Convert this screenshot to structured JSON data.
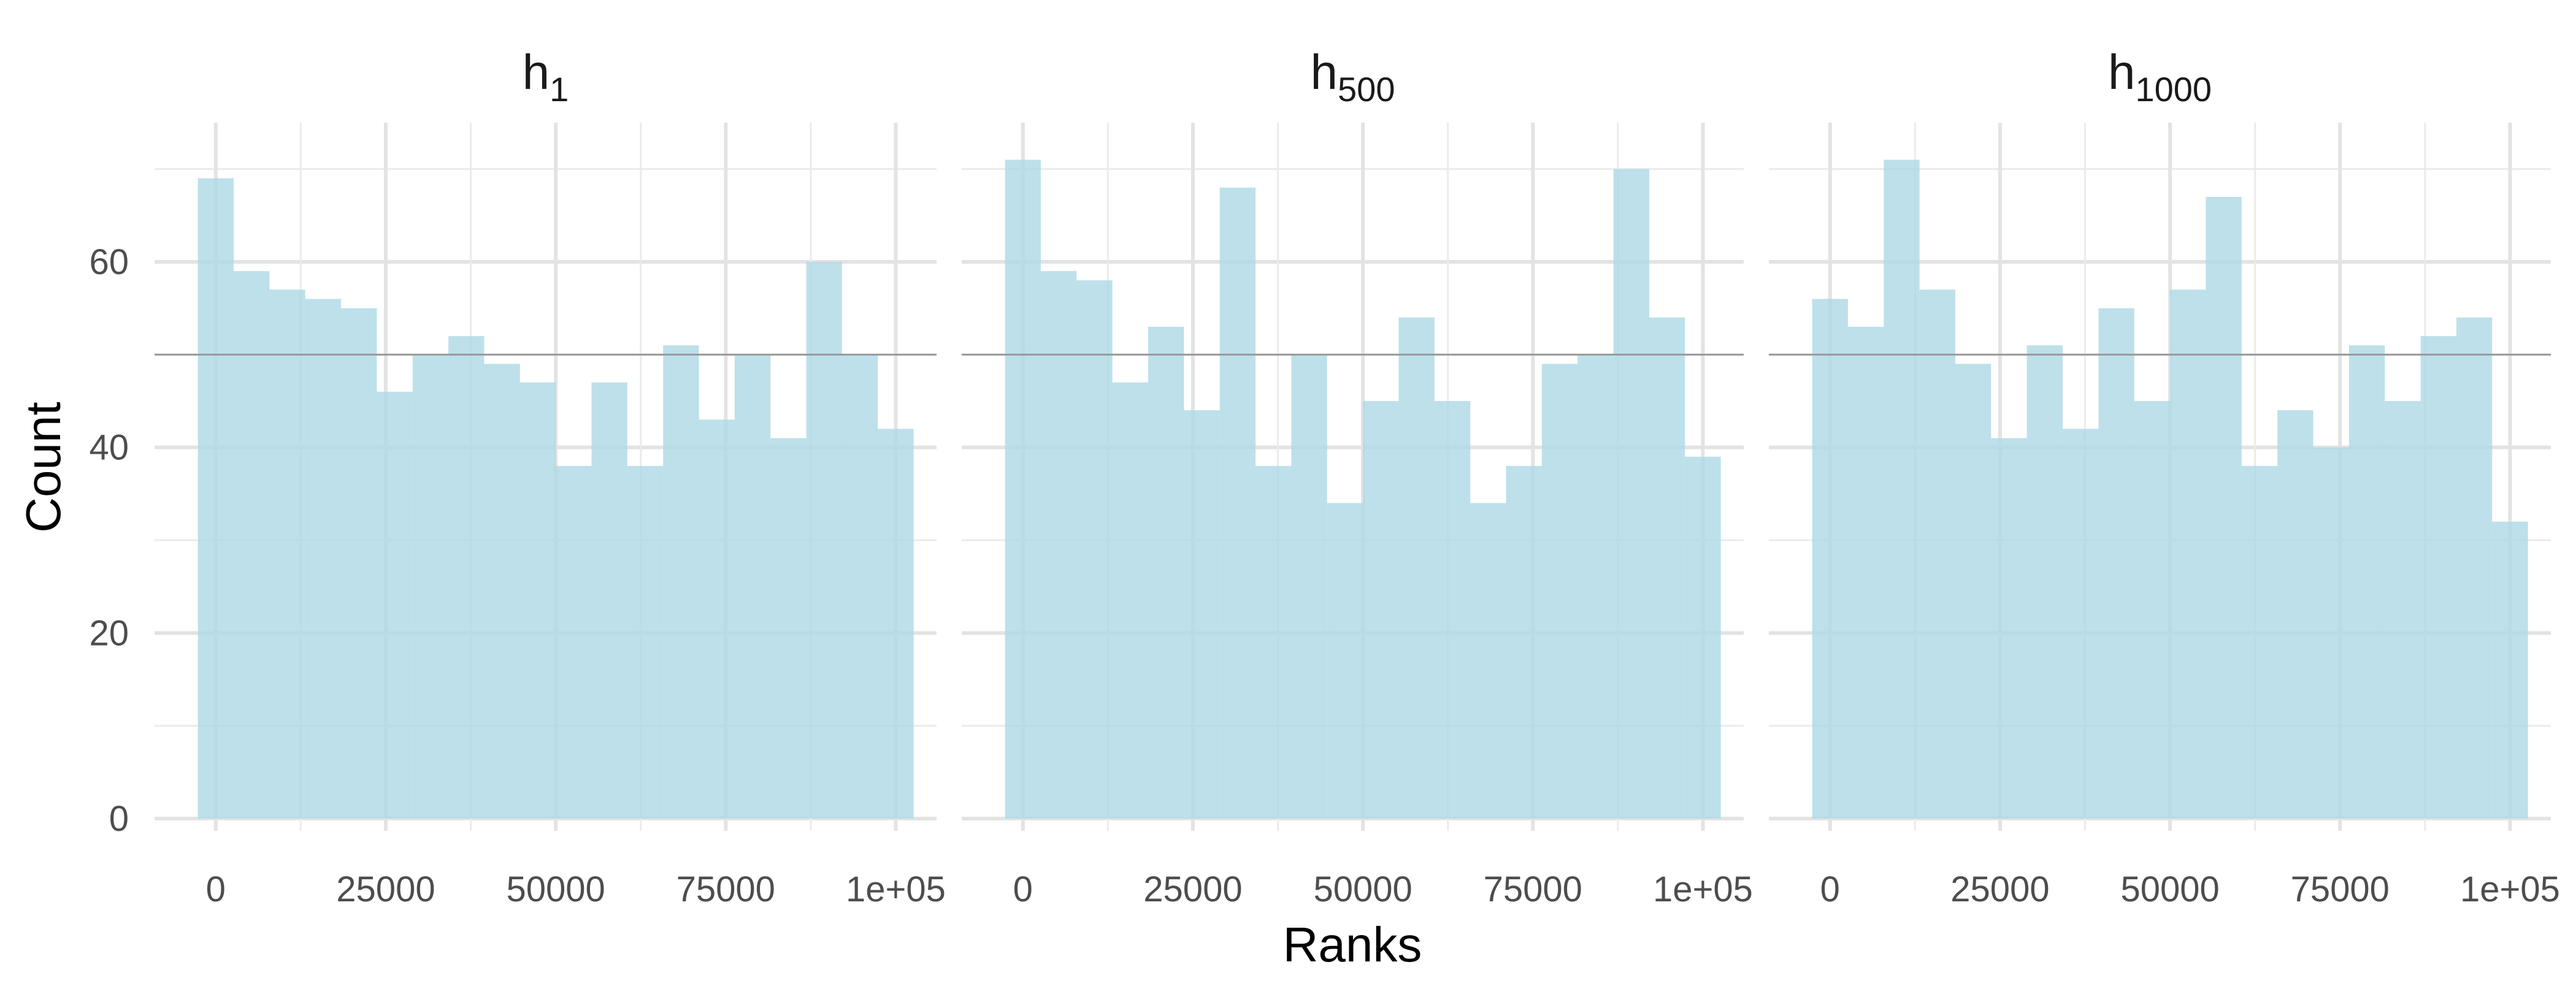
{
  "chart_data": {
    "type": "bar",
    "xlabel": "Ranks",
    "ylabel": "Count",
    "ylim": [
      0,
      75
    ],
    "xlim": [
      -9000,
      106000
    ],
    "xticks": [
      "0",
      "25000",
      "50000",
      "75000",
      "1e+05"
    ],
    "xtick_values": [
      0,
      25000,
      50000,
      75000,
      100000
    ],
    "yticks": [
      "0",
      "20",
      "40",
      "60"
    ],
    "ytick_values": [
      0,
      20,
      40,
      60
    ],
    "reference_line": 50,
    "grid": true,
    "bar_color": "#add8e6",
    "bar_opacity": 0.8,
    "reference_line_color": "#999999",
    "bin_edges": [
      -2632,
      2632,
      7895,
      13158,
      18421,
      23684,
      28947,
      34211,
      39474,
      44737,
      50000,
      55263,
      60526,
      65789,
      71053,
      76316,
      81579,
      86842,
      92105,
      97368,
      102632
    ],
    "panels": [
      {
        "title_base": "h",
        "title_sub": "1",
        "values": [
          69,
          59,
          57,
          56,
          55,
          46,
          50,
          52,
          49,
          47,
          38,
          47,
          38,
          51,
          43,
          50,
          41,
          60,
          50,
          42
        ]
      },
      {
        "title_base": "h",
        "title_sub": "500",
        "values": [
          71,
          59,
          58,
          47,
          53,
          44,
          68,
          38,
          50,
          34,
          45,
          54,
          45,
          34,
          38,
          49,
          50,
          70,
          54,
          39
        ]
      },
      {
        "title_base": "h",
        "title_sub": "1000",
        "values": [
          56,
          53,
          71,
          57,
          49,
          41,
          51,
          42,
          55,
          45,
          57,
          67,
          38,
          44,
          40,
          51,
          45,
          52,
          54,
          32
        ]
      }
    ]
  }
}
